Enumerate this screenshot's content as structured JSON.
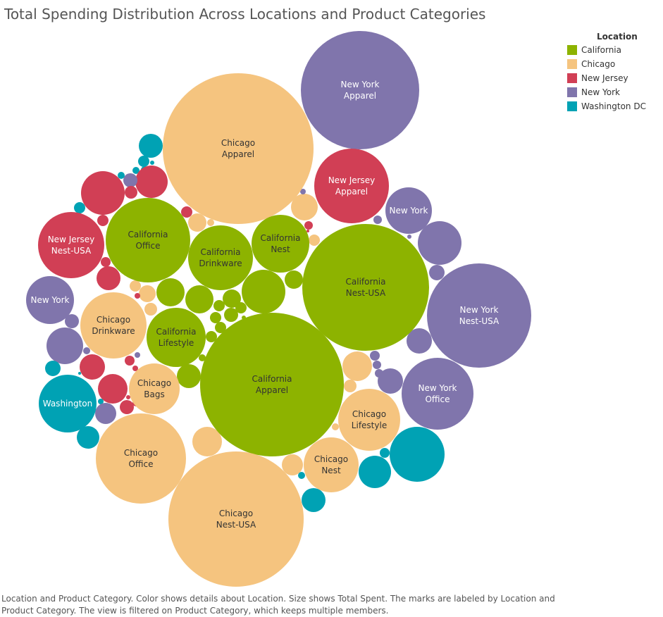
{
  "title": "Total Spending Distribution Across Locations and Product Categories",
  "caption": "Location and Product Category.  Color shows details about Location.  Size shows Total Spent.  The marks are labeled by Location and Product Category. The view is filtered on Product Category, which keeps multiple members.",
  "legend": {
    "title": "Location",
    "items": [
      {
        "label": "California",
        "color": "#8db300"
      },
      {
        "label": "Chicago",
        "color": "#f5c47f"
      },
      {
        "label": "New Jersey",
        "color": "#d13f55"
      },
      {
        "label": "New York",
        "color": "#8075ac"
      },
      {
        "label": "Washington DC",
        "color": "#00a2b4"
      }
    ]
  },
  "chart_data": {
    "type": "bubble",
    "size_measure": "Total Spent",
    "color_measure": "Location",
    "labeled_bubbles": [
      {
        "location": "Chicago",
        "category": "Apparel",
        "lines": [
          "Chicago",
          "Apparel"
        ]
      },
      {
        "location": "New York",
        "category": "Apparel",
        "lines": [
          "New York",
          "Apparel"
        ]
      },
      {
        "location": "New Jersey",
        "category": "Apparel",
        "lines": [
          "New Jersey",
          "Apparel"
        ]
      },
      {
        "location": "New York",
        "category": "",
        "lines": [
          "New York"
        ]
      },
      {
        "location": "California",
        "category": "Office",
        "lines": [
          "California",
          "Office"
        ]
      },
      {
        "location": "California",
        "category": "Drinkware",
        "lines": [
          "California",
          "Drinkware"
        ]
      },
      {
        "location": "California",
        "category": "Nest",
        "lines": [
          "California",
          "Nest"
        ]
      },
      {
        "location": "New Jersey",
        "category": "Nest-USA",
        "lines": [
          "New Jersey",
          "Nest-USA"
        ]
      },
      {
        "location": "California",
        "category": "Nest-USA",
        "lines": [
          "California",
          "Nest-USA"
        ]
      },
      {
        "location": "New York",
        "category": "",
        "lines": [
          "New York"
        ]
      },
      {
        "location": "New York",
        "category": "Nest-USA",
        "lines": [
          "New York",
          "Nest-USA"
        ]
      },
      {
        "location": "Chicago",
        "category": "Drinkware",
        "lines": [
          "Chicago",
          "Drinkware"
        ]
      },
      {
        "location": "California",
        "category": "Lifestyle",
        "lines": [
          "California",
          "Lifestyle"
        ]
      },
      {
        "location": "California",
        "category": "Apparel",
        "lines": [
          "California",
          "Apparel"
        ]
      },
      {
        "location": "Chicago",
        "category": "Bags",
        "lines": [
          "Chicago",
          "Bags"
        ]
      },
      {
        "location": "New York",
        "category": "Office",
        "lines": [
          "New York",
          "Office"
        ]
      },
      {
        "location": "Washington",
        "category": "",
        "lines": [
          "Washington"
        ]
      },
      {
        "location": "Chicago",
        "category": "Lifestyle",
        "lines": [
          "Chicago",
          "Lifestyle"
        ]
      },
      {
        "location": "Chicago",
        "category": "Office",
        "lines": [
          "Chicago",
          "Office"
        ]
      },
      {
        "location": "Chicago",
        "category": "Nest",
        "lines": [
          "Chicago",
          "Nest"
        ]
      },
      {
        "location": "Chicago",
        "category": "Nest-USA",
        "lines": [
          "Chicago",
          "Nest-USA"
        ]
      }
    ]
  }
}
